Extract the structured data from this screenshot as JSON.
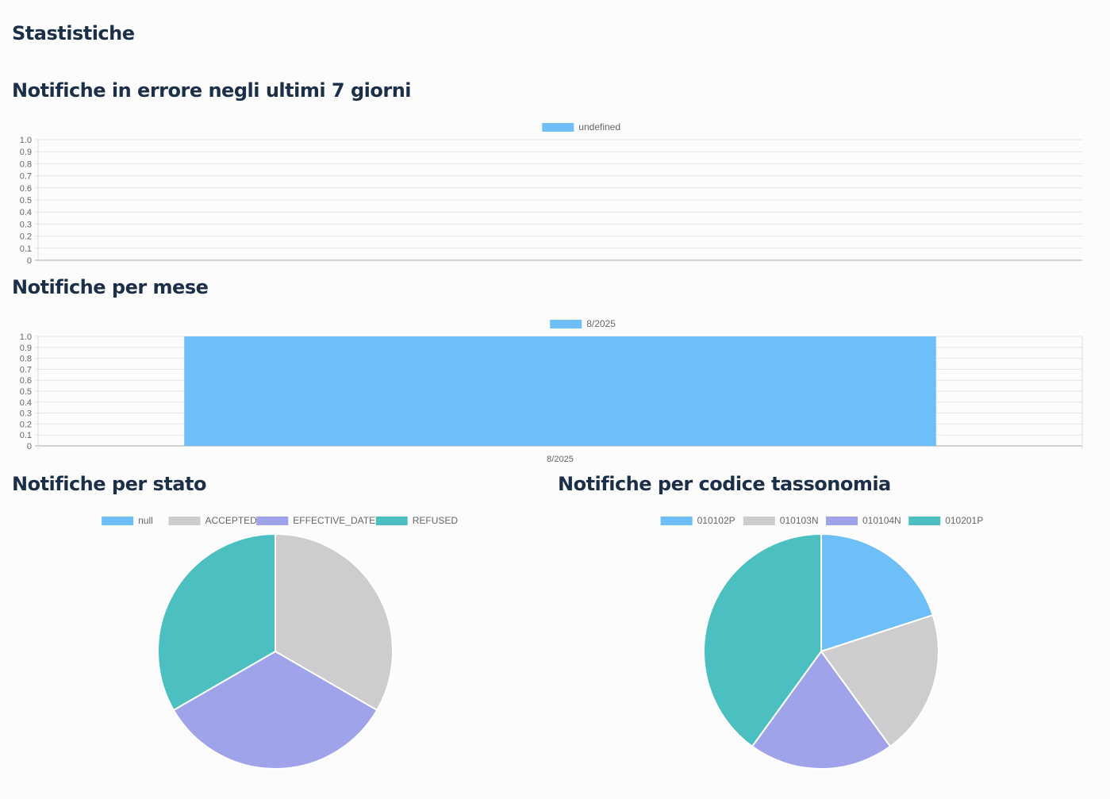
{
  "page": {
    "title": "Stastistiche"
  },
  "chart_data": [
    {
      "id": "errors",
      "type": "bar",
      "title": "Notifiche in errore negli ultimi 7 giorni",
      "legend": [
        "undefined"
      ],
      "categories": [],
      "series": [
        {
          "name": "undefined",
          "values": [],
          "color": "#6ebef7"
        }
      ],
      "ylim": [
        0,
        1.0
      ],
      "yticks": [
        "1.0",
        "0.9",
        "0.8",
        "0.7",
        "0.6",
        "0.5",
        "0.4",
        "0.3",
        "0.2",
        "0.1",
        "0"
      ],
      "grid": true,
      "legend_position": "top-center"
    },
    {
      "id": "monthly",
      "type": "bar",
      "title": "Notifiche per mese",
      "legend": [
        "8/2025"
      ],
      "categories": [
        "8/2025"
      ],
      "series": [
        {
          "name": "8/2025",
          "values": [
            1
          ],
          "color": "#6ebef7"
        }
      ],
      "ylim": [
        0,
        1.0
      ],
      "yticks": [
        "1.0",
        "0.9",
        "0.8",
        "0.7",
        "0.6",
        "0.5",
        "0.4",
        "0.3",
        "0.2",
        "0.1",
        "0"
      ],
      "grid": true,
      "legend_position": "top-center"
    },
    {
      "id": "state",
      "type": "pie",
      "title": "Notifiche per stato",
      "labels": [
        "null",
        "ACCEPTED",
        "EFFECTIVE_DATE",
        "REFUSED"
      ],
      "values": [
        0,
        1,
        1,
        1
      ],
      "colors": [
        "#6ebef7",
        "#cdcdcf",
        "#9ea3ea",
        "#4cc0c0"
      ],
      "legend_position": "top-center"
    },
    {
      "id": "taxonomy",
      "type": "pie",
      "title": "Notifiche per codice tassonomia",
      "labels": [
        "010102P",
        "010103N",
        "010104N",
        "010201P"
      ],
      "values": [
        1,
        1,
        1,
        2
      ],
      "colors": [
        "#6ebef7",
        "#cdcdcf",
        "#9ea3ea",
        "#4cc0c0"
      ],
      "legend_position": "top-center"
    }
  ]
}
